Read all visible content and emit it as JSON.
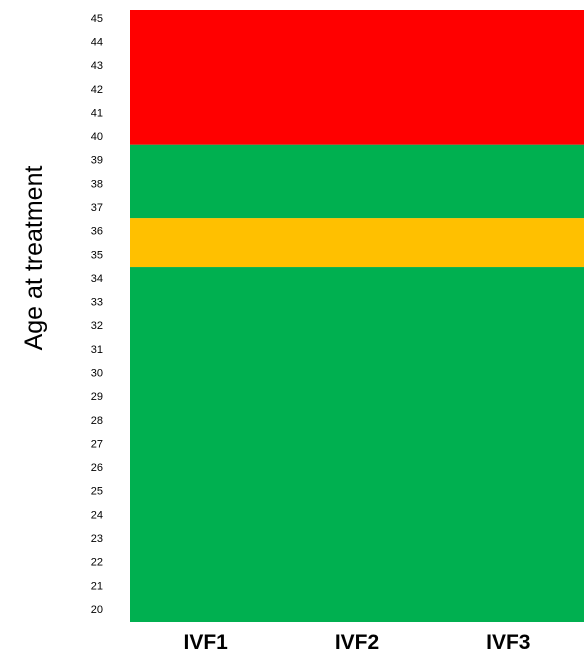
{
  "chart_data": {
    "type": "heatmap",
    "title": "",
    "xlabel": "",
    "ylabel": "Age at treatment",
    "categories": [
      "IVF1",
      "IVF2",
      "IVF3"
    ],
    "y_ticks": [
      20,
      21,
      22,
      23,
      24,
      25,
      26,
      27,
      28,
      29,
      30,
      31,
      32,
      33,
      34,
      35,
      36,
      37,
      38,
      39,
      40,
      41,
      42,
      43,
      44,
      45
    ],
    "ylim": [
      20,
      45
    ],
    "grid": false,
    "legend": "none",
    "bands": [
      {
        "from": 20,
        "to": 34.5,
        "color": "#00b050"
      },
      {
        "from": 34.5,
        "to": 36.5,
        "color": "#ffc000"
      },
      {
        "from": 36.5,
        "to": 39.5,
        "color": "#00b050"
      },
      {
        "from": 39.5,
        "to": 45,
        "color": "#ff0000"
      }
    ]
  },
  "colors": {
    "green": "#00b050",
    "amber": "#ffc000",
    "red": "#ff0000"
  }
}
